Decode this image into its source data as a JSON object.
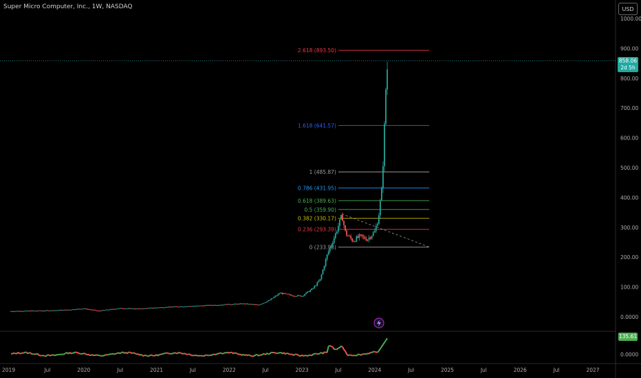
{
  "header": {
    "title": "Super Micro Computer, Inc., 1W, NASDAQ",
    "currency_button": "USD"
  },
  "price_badge": {
    "price": "858.06",
    "countdown": "2d 5h"
  },
  "indicator_badge": {
    "value": "135.61"
  },
  "colors": {
    "background": "#000000",
    "up_candle": "#26a69a",
    "down_candle": "#ef5350",
    "fib_0": "#9e9e9e",
    "fib_0236": "#f23645",
    "fib_0382": "#c8c000",
    "fib_05": "#4caf50",
    "fib_0618": "#4caf50",
    "fib_0786": "#2196f3",
    "fib_1": "#9e9e9e",
    "fib_1618": "#2962ff",
    "fib_2618": "#f23645",
    "indicator_up": "#4caf50",
    "indicator_down": "#ef5350"
  },
  "chart_data": {
    "type": "line",
    "instrument": "Super Micro Computer, Inc.",
    "timeframe": "1W",
    "exchange": "NASDAQ",
    "last_price": 858.06,
    "y_ticks": [
      "1000.00",
      "900.00",
      "800.00",
      "700.00",
      "600.00",
      "500.00",
      "400.00",
      "300.00",
      "200.00",
      "100.00",
      "0.0000"
    ],
    "x_ticks": [
      "2019",
      "Jul",
      "2020",
      "Jul",
      "2021",
      "Jul",
      "2022",
      "Jul",
      "2023",
      "Jul",
      "2024",
      "Jul",
      "2025",
      "Jul",
      "2026",
      "Jul",
      "2027"
    ],
    "ylim": [
      -10,
      1030
    ],
    "xlim": [
      2018.97,
      2027.55
    ],
    "price_series": [
      {
        "x": 2019.0,
        "y": 19
      },
      {
        "x": 2019.25,
        "y": 20
      },
      {
        "x": 2019.5,
        "y": 21
      },
      {
        "x": 2019.75,
        "y": 23
      },
      {
        "x": 2020.0,
        "y": 28
      },
      {
        "x": 2020.2,
        "y": 20
      },
      {
        "x": 2020.5,
        "y": 29
      },
      {
        "x": 2020.75,
        "y": 27
      },
      {
        "x": 2021.0,
        "y": 31
      },
      {
        "x": 2021.25,
        "y": 34
      },
      {
        "x": 2021.5,
        "y": 36
      },
      {
        "x": 2021.75,
        "y": 39
      },
      {
        "x": 2022.0,
        "y": 42
      },
      {
        "x": 2022.2,
        "y": 44
      },
      {
        "x": 2022.4,
        "y": 40
      },
      {
        "x": 2022.55,
        "y": 55
      },
      {
        "x": 2022.7,
        "y": 80
      },
      {
        "x": 2022.85,
        "y": 72
      },
      {
        "x": 2023.0,
        "y": 70
      },
      {
        "x": 2023.15,
        "y": 95
      },
      {
        "x": 2023.25,
        "y": 125
      },
      {
        "x": 2023.35,
        "y": 210
      },
      {
        "x": 2023.45,
        "y": 270
      },
      {
        "x": 2023.55,
        "y": 340
      },
      {
        "x": 2023.6,
        "y": 280
      },
      {
        "x": 2023.7,
        "y": 255
      },
      {
        "x": 2023.8,
        "y": 270
      },
      {
        "x": 2023.9,
        "y": 260
      },
      {
        "x": 2024.0,
        "y": 285
      },
      {
        "x": 2024.05,
        "y": 330
      },
      {
        "x": 2024.1,
        "y": 430
      },
      {
        "x": 2024.13,
        "y": 600
      },
      {
        "x": 2024.15,
        "y": 750
      },
      {
        "x": 2024.18,
        "y": 858.06
      }
    ],
    "fibonacci": [
      {
        "level": "2.618",
        "price": "893.50",
        "value": 893.5,
        "color": "#f23645"
      },
      {
        "level": "1.618",
        "price": "641.57",
        "value": 641.57,
        "color": "#2962ff"
      },
      {
        "level": "1",
        "price": "485.87",
        "value": 485.87,
        "color": "#9e9e9e"
      },
      {
        "level": "0.786",
        "price": "431.95",
        "value": 431.95,
        "color": "#2196f3"
      },
      {
        "level": "0.618",
        "price": "389.63",
        "value": 389.63,
        "color": "#4caf50"
      },
      {
        "level": "0.5",
        "price": "359.90",
        "value": 359.9,
        "color": "#4caf50"
      },
      {
        "level": "0.382",
        "price": "330.17",
        "value": 330.17,
        "color": "#c8c000"
      },
      {
        "level": "0.236",
        "price": "293.39",
        "value": 293.39,
        "color": "#f23645"
      },
      {
        "level": "0",
        "price": "233.93",
        "value": 233.93,
        "color": "#9e9e9e"
      }
    ],
    "fib_x_range": [
      2023.5,
      2024.75
    ],
    "trend_line": {
      "from": {
        "x": 2023.55,
        "y": 345
      },
      "to": {
        "x": 2024.75,
        "y": 234
      }
    },
    "indicator": {
      "last_value": 135.61,
      "y_tick": "0.0000",
      "ylim": [
        -60,
        160
      ]
    }
  }
}
